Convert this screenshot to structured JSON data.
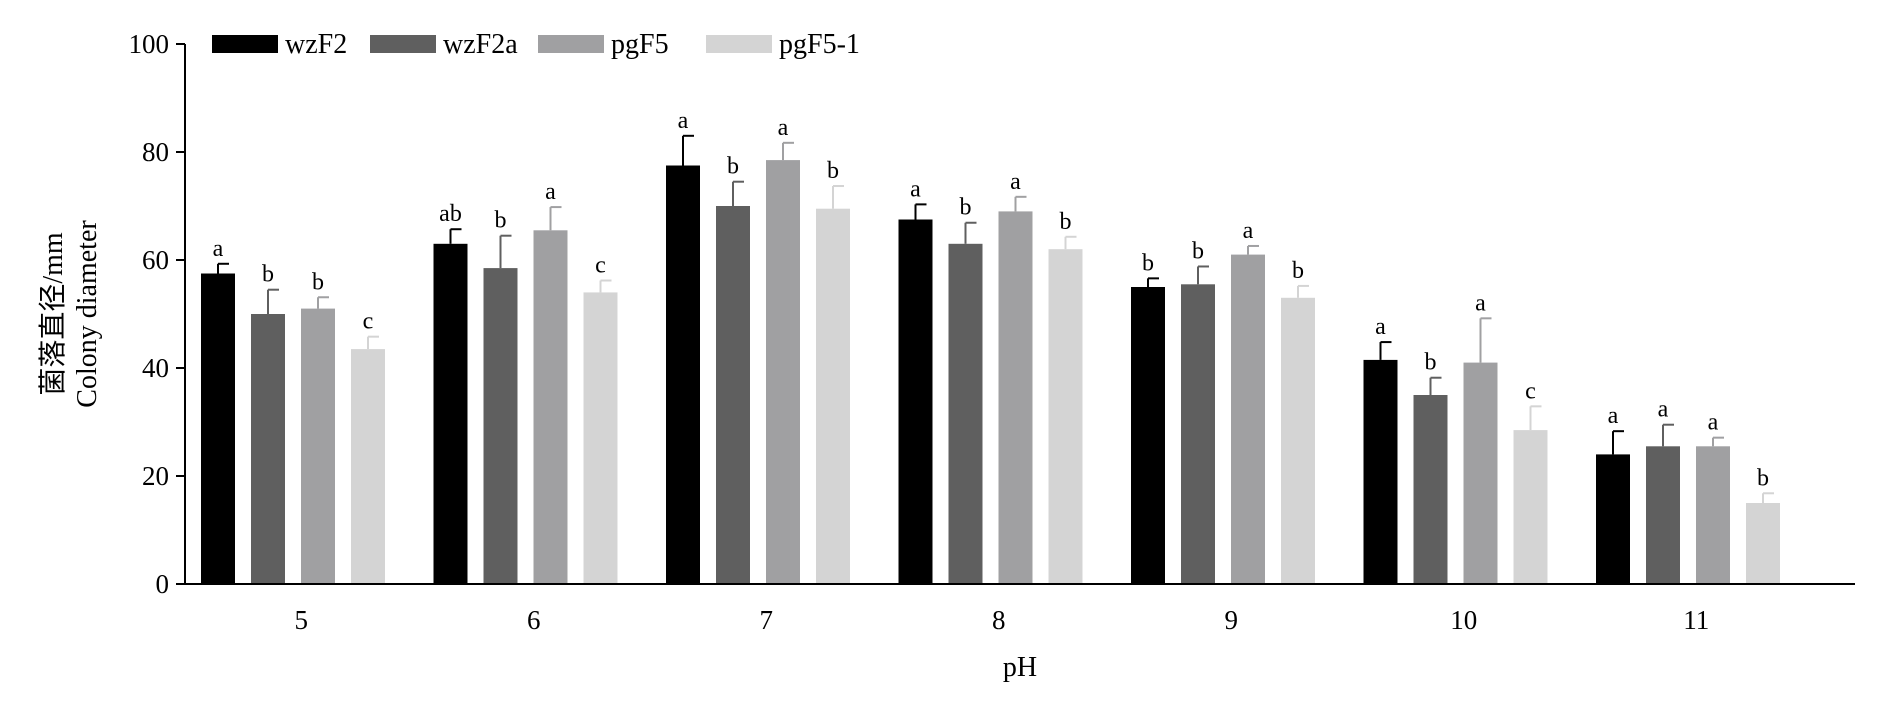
{
  "chart_data": {
    "type": "bar",
    "xlabel": "pH",
    "ylabel_lines": [
      "菌落直径/mm",
      "Colony diameter"
    ],
    "ylim": [
      0,
      100
    ],
    "yticks": [
      0,
      20,
      40,
      60,
      80,
      100
    ],
    "categories": [
      "5",
      "6",
      "7",
      "8",
      "9",
      "10",
      "11"
    ],
    "legend_position": "top-left",
    "series": [
      {
        "name": "wzF2",
        "color": "#000000",
        "values": [
          57.5,
          63,
          77.5,
          67.5,
          55,
          41.5,
          24
        ],
        "errors": [
          1.8,
          2.7,
          5.5,
          2.8,
          1.6,
          3.3,
          4.3
        ],
        "significance": [
          "a",
          "ab",
          "a",
          "a",
          "b",
          "a",
          "a"
        ]
      },
      {
        "name": "wzF2a",
        "color": "#5f5f5f",
        "values": [
          50,
          58.5,
          70,
          63,
          55.5,
          35,
          25.5
        ],
        "errors": [
          4.5,
          6,
          4.5,
          3.9,
          3.3,
          3.2,
          4
        ],
        "significance": [
          "b",
          "b",
          "b",
          "b",
          "b",
          "b",
          "a"
        ]
      },
      {
        "name": "pgF5",
        "color": "#a0a0a2",
        "values": [
          51,
          65.5,
          78.5,
          69,
          61,
          41,
          25.5
        ],
        "errors": [
          2.1,
          4.3,
          3.2,
          2.7,
          1.6,
          8.2,
          1.6
        ],
        "significance": [
          "b",
          "a",
          "a",
          "a",
          "a",
          "a",
          "a"
        ]
      },
      {
        "name": "pgF5-1",
        "color": "#d4d4d4",
        "values": [
          43.5,
          54,
          69.5,
          62,
          53,
          28.5,
          15
        ],
        "errors": [
          2.3,
          2.2,
          4.2,
          2.3,
          2.2,
          4.4,
          1.8
        ],
        "significance": [
          "c",
          "c",
          "b",
          "b",
          "b",
          "c",
          "b"
        ]
      }
    ]
  }
}
